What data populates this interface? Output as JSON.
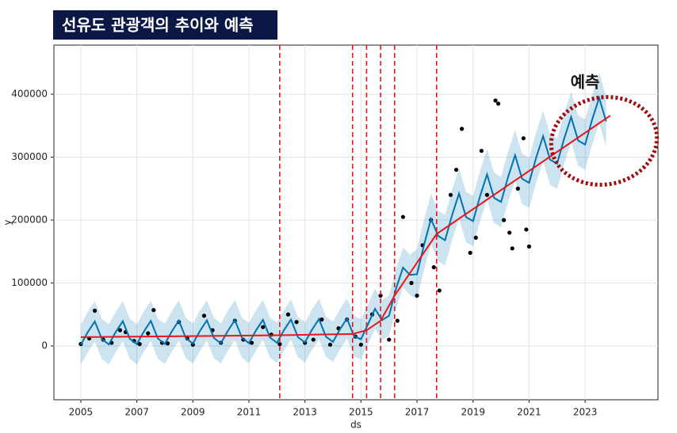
{
  "chart_data": {
    "type": "line",
    "title": "선유도 관광객의 추이와 예측",
    "annotation": "예측",
    "xlabel": "ds",
    "ylabel": "y",
    "x": [
      2005,
      2005.25,
      2005.5,
      2005.75,
      2006,
      2006.25,
      2006.5,
      2006.75,
      2007,
      2007.25,
      2007.5,
      2007.75,
      2008,
      2008.25,
      2008.5,
      2008.75,
      2009,
      2009.25,
      2009.5,
      2009.75,
      2010,
      2010.25,
      2010.5,
      2010.75,
      2011,
      2011.25,
      2011.5,
      2011.75,
      2012,
      2012.25,
      2012.5,
      2012.75,
      2013,
      2013.25,
      2013.5,
      2013.75,
      2014,
      2014.25,
      2014.5,
      2014.75,
      2015,
      2015.25,
      2015.5,
      2015.75,
      2016,
      2016.25,
      2016.5,
      2016.75,
      2017,
      2017.25,
      2017.5,
      2017.75,
      2018,
      2018.25,
      2018.5,
      2018.75,
      2019,
      2019.25,
      2019.5,
      2019.75,
      2020,
      2020.25,
      2020.5,
      2020.75,
      2021,
      2021.25,
      2021.5,
      2021.75,
      2022,
      2022.25,
      2022.5,
      2022.75,
      2023,
      2023.25,
      2023.5,
      2023.75
    ],
    "forecast": {
      "color": "#0072b2",
      "values": [
        2000,
        22000,
        39000,
        11000,
        2400,
        22400,
        39400,
        11400,
        2800,
        22800,
        39800,
        11800,
        3300,
        23300,
        40300,
        12300,
        3700,
        23700,
        40700,
        12700,
        4100,
        24100,
        41100,
        13100,
        4500,
        24500,
        41500,
        13500,
        5000,
        25000,
        42000,
        14000,
        5700,
        25700,
        42700,
        14700,
        6500,
        26500,
        43500,
        15500,
        10600,
        34500,
        59000,
        41000,
        48000,
        91000,
        124500,
        113000,
        114000,
        160500,
        202000,
        175000,
        168000,
        207600,
        242200,
        204800,
        198400,
        238000,
        272600,
        235200,
        228800,
        268400,
        303000,
        265600,
        259200,
        298800,
        333400,
        296000,
        289600,
        329200,
        363800,
        326400,
        320000,
        359600,
        394200,
        356800
      ]
    },
    "band": {
      "color": "#0072b2",
      "lower": [
        -30000,
        -10000,
        7000,
        -21000,
        -29600,
        -9600,
        7400,
        -20600,
        -29200,
        -9200,
        7800,
        -20200,
        -28700,
        -8700,
        8300,
        -19700,
        -28300,
        -8300,
        8700,
        -19300,
        -27900,
        -7900,
        9100,
        -18900,
        -27500,
        -7500,
        9500,
        -18500,
        -27000,
        -7000,
        10000,
        -18000,
        -26300,
        -6300,
        10700,
        -17300,
        -25500,
        -5500,
        11500,
        -16500,
        -21400,
        2500,
        27000,
        9000,
        16000,
        59000,
        92500,
        81000,
        74000,
        120500,
        162000,
        135000,
        128000,
        167600,
        202200,
        164800,
        158400,
        198000,
        232600,
        195200,
        188800,
        228400,
        263000,
        225600,
        219200,
        258800,
        293400,
        256000,
        249600,
        289200,
        323800,
        286400,
        280000,
        319600,
        354200,
        316800
      ],
      "upper": [
        34000,
        54000,
        71000,
        43000,
        34400,
        54400,
        71400,
        43400,
        34800,
        54800,
        71800,
        43800,
        35300,
        55300,
        72300,
        44300,
        35700,
        55700,
        72700,
        44700,
        36100,
        56100,
        73100,
        45100,
        36500,
        56500,
        73500,
        45500,
        37000,
        57000,
        74000,
        46000,
        37700,
        57700,
        74700,
        46700,
        38500,
        58500,
        75500,
        47500,
        42600,
        66500,
        91000,
        73000,
        80000,
        123000,
        156500,
        145000,
        154000,
        200500,
        242000,
        215000,
        208000,
        247600,
        282200,
        244800,
        238400,
        278000,
        312600,
        275200,
        268800,
        308400,
        343000,
        305600,
        299200,
        338800,
        373400,
        336000,
        329600,
        369200,
        403800,
        366400,
        360000,
        399600,
        434200,
        396800
      ]
    },
    "trend": {
      "color": "#e8161b",
      "x": [
        2005,
        2012.1,
        2014.7,
        2015.2,
        2015.7,
        2016.2,
        2017.7,
        2023.9
      ],
      "values": [
        14000,
        17000,
        19000,
        25000,
        40000,
        80000,
        178000,
        366000
      ]
    },
    "observed": {
      "color": "#000000",
      "x": [
        2005.0,
        2005.3,
        2005.5,
        2005.8,
        2006.1,
        2006.4,
        2006.6,
        2006.9,
        2007.1,
        2007.4,
        2007.6,
        2007.9,
        2008.1,
        2008.5,
        2008.8,
        2009.0,
        2009.4,
        2009.7,
        2010.0,
        2010.5,
        2010.8,
        2011.1,
        2011.5,
        2011.8,
        2012.1,
        2012.4,
        2012.7,
        2013.0,
        2013.3,
        2013.6,
        2013.9,
        2014.2,
        2014.5,
        2014.8,
        2015.0,
        2015.4,
        2015.7,
        2016.0,
        2016.3,
        2016.5,
        2016.8,
        2017.0,
        2017.2,
        2017.5,
        2017.6,
        2017.8,
        2018.2,
        2018.4,
        2018.6,
        2018.9,
        2019.1,
        2019.3,
        2019.5,
        2019.8,
        2019.9,
        2020.1,
        2020.3,
        2020.4,
        2020.6,
        2020.8,
        2020.9,
        2021.0
      ],
      "values": [
        3000,
        12000,
        56000,
        10000,
        5000,
        25000,
        22000,
        8000,
        3000,
        20000,
        57000,
        5000,
        4000,
        38000,
        12000,
        2000,
        48000,
        25000,
        5000,
        40000,
        10000,
        5000,
        30000,
        18000,
        3000,
        50000,
        38000,
        5000,
        10000,
        42000,
        2000,
        28000,
        42000,
        15000,
        2000,
        50000,
        80000,
        10000,
        40000,
        205000,
        100000,
        80000,
        160000,
        200000,
        125000,
        88000,
        240000,
        280000,
        345000,
        148000,
        172000,
        310000,
        240000,
        390000,
        385000,
        200000,
        180000,
        155000,
        250000,
        330000,
        185000,
        158000
      ]
    },
    "changepoints": {
      "color": "#e8161b",
      "x": [
        2012.1,
        2014.7,
        2015.2,
        2015.7,
        2016.2,
        2017.7
      ]
    },
    "xlim": [
      2004.04,
      2025.6
    ],
    "xticks": [
      2005,
      2007,
      2009,
      2011,
      2013,
      2015,
      2017,
      2019,
      2021,
      2023
    ],
    "ylim": [
      -85500,
      478000
    ],
    "yticks": [
      0,
      100000,
      200000,
      300000,
      400000
    ],
    "grid": true
  }
}
